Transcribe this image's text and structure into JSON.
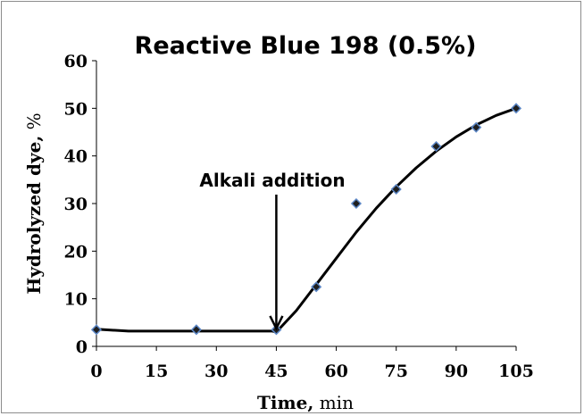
{
  "chart_data": {
    "type": "scatter",
    "title": "Reactive Blue 198 (0.5%)",
    "xlabel": {
      "bold": "Time,",
      "unit": " min"
    },
    "ylabel": {
      "bold": "Hydrolyzed dye,",
      "unit": " %"
    },
    "xlim": [
      0,
      105
    ],
    "ylim": [
      0,
      60
    ],
    "xticks": [
      "0",
      "15",
      "30",
      "45",
      "60",
      "75",
      "90",
      "105"
    ],
    "yticks": [
      "0",
      "10",
      "20",
      "30",
      "40",
      "50",
      "60"
    ],
    "grid": false,
    "series": [
      {
        "points": [
          {
            "x": 0,
            "y": 3.5
          },
          {
            "x": 25,
            "y": 3.5
          },
          {
            "x": 45,
            "y": 3.5
          },
          {
            "x": 55,
            "y": 12.5
          },
          {
            "x": 65,
            "y": 30
          },
          {
            "x": 75,
            "y": 33
          },
          {
            "x": 85,
            "y": 42
          },
          {
            "x": 95,
            "y": 46
          },
          {
            "x": 105,
            "y": 50
          }
        ]
      }
    ],
    "trend_line": [
      {
        "x": 0,
        "y": 3.6
      },
      {
        "x": 8,
        "y": 3.2
      },
      {
        "x": 20,
        "y": 3.2
      },
      {
        "x": 35,
        "y": 3.2
      },
      {
        "x": 44,
        "y": 3.2
      },
      {
        "x": 45,
        "y": 3.0
      },
      {
        "x": 50,
        "y": 7.5
      },
      {
        "x": 55,
        "y": 13
      },
      {
        "x": 60,
        "y": 18.5
      },
      {
        "x": 65,
        "y": 24
      },
      {
        "x": 70,
        "y": 29
      },
      {
        "x": 75,
        "y": 33.5
      },
      {
        "x": 80,
        "y": 37.5
      },
      {
        "x": 85,
        "y": 41
      },
      {
        "x": 90,
        "y": 44
      },
      {
        "x": 95,
        "y": 46.5
      },
      {
        "x": 100,
        "y": 48.5
      },
      {
        "x": 105,
        "y": 50
      }
    ],
    "annotation": {
      "text": "Alkali addition",
      "x": 45,
      "y": 3.2
    },
    "colors": {
      "marker_fill": "#1f1f1f",
      "marker_edge": "#5b86c5",
      "line": "#000000",
      "axis": "#000000",
      "frame": "#8c8c8c"
    }
  }
}
